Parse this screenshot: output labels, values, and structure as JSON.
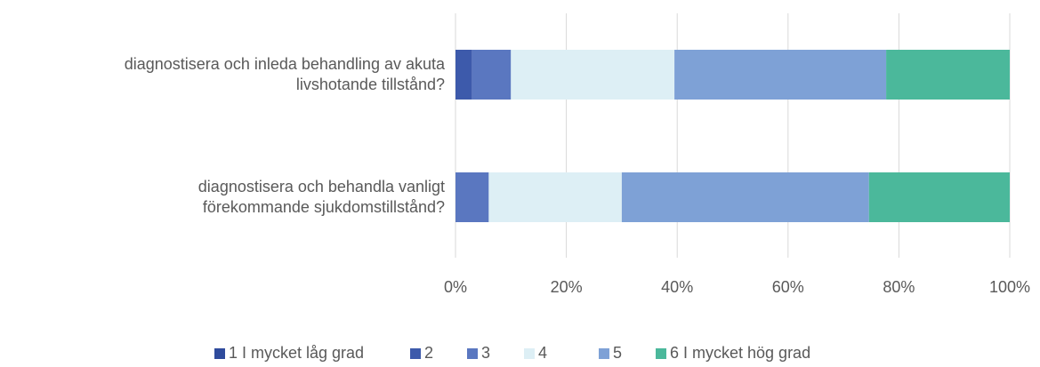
{
  "chart_data": {
    "type": "stacked_barh",
    "categories": [
      "diagnostisera och inleda behandling av akuta livshotande tillstånd?",
      "diagnostisera och behandla vanligt förekommande sjukdomstillstånd?"
    ],
    "series": [
      {
        "name": "1  I mycket låg grad",
        "color": "#2f4b9c",
        "values": [
          0,
          0
        ]
      },
      {
        "name": "2",
        "color": "#3d5aab",
        "values": [
          3,
          0
        ]
      },
      {
        "name": "3",
        "color": "#5a77c0",
        "values": [
          7,
          6
        ]
      },
      {
        "name": "4",
        "color": "#ddeff5",
        "values": [
          29.5,
          24
        ]
      },
      {
        "name": "5",
        "color": "#7ea1d6",
        "values": [
          38.2,
          44.6
        ]
      },
      {
        "name": "6   I mycket hög grad",
        "color": "#4bb89b",
        "values": [
          22.3,
          25.4
        ]
      }
    ],
    "xlim": [
      0,
      100
    ],
    "xticks": [
      {
        "value": 0,
        "label": "0%"
      },
      {
        "value": 20,
        "label": "20%"
      },
      {
        "value": 40,
        "label": "40%"
      },
      {
        "value": 60,
        "label": "60%"
      },
      {
        "value": 80,
        "label": "80%"
      },
      {
        "value": 100,
        "label": "100%"
      }
    ],
    "grid": true,
    "legend": "bottom"
  }
}
